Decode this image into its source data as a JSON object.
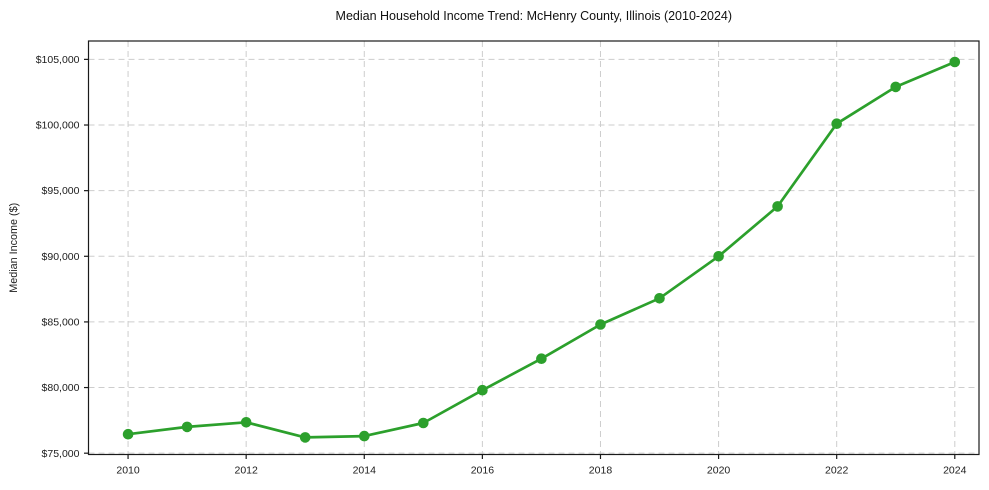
{
  "chart_data": {
    "type": "line",
    "title": "Median Household Income Trend: McHenry County, Illinois (2010-2024)",
    "xlabel": "",
    "ylabel": "Median Income ($)",
    "x": [
      2010,
      2011,
      2012,
      2013,
      2014,
      2015,
      2016,
      2017,
      2018,
      2019,
      2020,
      2021,
      2022,
      2023,
      2024
    ],
    "series": [
      {
        "name": "Median household income",
        "values": [
          76450,
          77000,
          77350,
          76200,
          76300,
          77300,
          79800,
          82200,
          84800,
          86800,
          90000,
          93800,
          100100,
          102900,
          104800
        ]
      }
    ],
    "xticks": [
      2010,
      2012,
      2014,
      2016,
      2018,
      2020,
      2022,
      2024
    ],
    "yticks": [
      75000,
      80000,
      85000,
      90000,
      95000,
      100000,
      105000
    ],
    "ytick_labels": [
      "$75,000",
      "$80,000",
      "$85,000",
      "$90,000",
      "$95,000",
      "$100,000",
      "$105,000"
    ],
    "xlim": [
      2009.33,
      2024.41
    ],
    "ylim": [
      74900,
      106400
    ],
    "grid": true,
    "grid_style": "dashed",
    "legend": "none",
    "line_color": "#2ca02c",
    "marker": "circle",
    "marker_radius": 5.3,
    "background": "#ffffff",
    "text_color": "#1c1c1c"
  }
}
